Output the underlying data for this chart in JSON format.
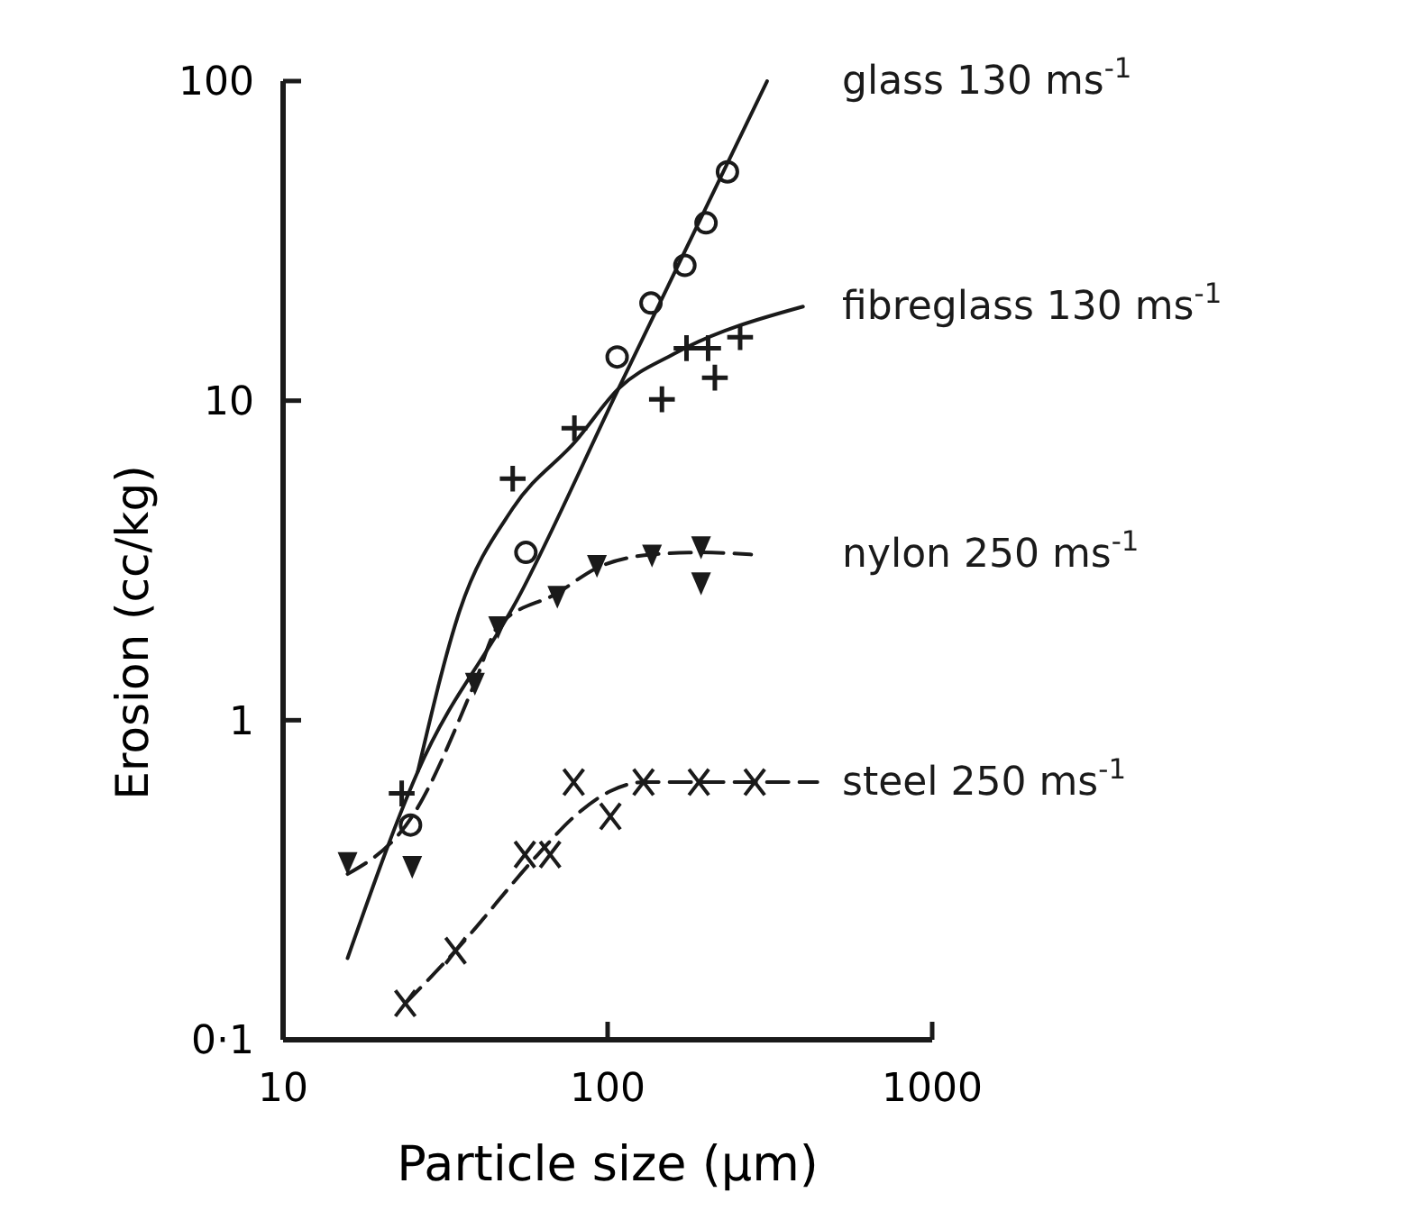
{
  "chart_data": {
    "type": "scatter",
    "xlabel": "Particle size (μm)",
    "ylabel": "Erosion (cc/kg)",
    "log": "xy",
    "xlim": [
      10,
      1000
    ],
    "ylim": [
      0.1,
      100
    ],
    "xticks": [
      10,
      100,
      1000
    ],
    "yticks": [
      {
        "value": 0.1,
        "label": "0·1"
      },
      1,
      10,
      100
    ],
    "grid": false,
    "legend": false,
    "series": [
      {
        "name": "glass 130 ms$^{-1}$",
        "color": "#1a1a1a",
        "marker": "circle",
        "x": [
          24.7,
          56,
          107,
          136,
          173,
          201,
          234
        ],
        "values": [
          0.47,
          3.35,
          13.7,
          20.2,
          26.5,
          36,
          52
        ]
      },
      {
        "type": "line",
        "color": "#1a1a1a",
        "line_style": "solid",
        "marker": "none",
        "x": [
          15.8,
          26,
          54,
          108,
          310
        ],
        "values": [
          0.18,
          0.69,
          2.5,
          10.9,
          100
        ]
      },
      {
        "name": "fibreglass 130 ms$^{-1}$",
        "color": "#1a1a1a",
        "marker": "cross",
        "x": [
          23.2,
          51,
          79,
          147,
          175,
          204,
          214,
          256
        ],
        "values": [
          0.59,
          5.7,
          8.2,
          10.1,
          14.6,
          14.6,
          11.8,
          15.8
        ]
      },
      {
        "type": "line",
        "color": "#1a1a1a",
        "line_style": "solid",
        "marker": "none",
        "x": [
          26,
          35,
          51,
          80,
          108,
          160,
          400
        ],
        "values": [
          0.69,
          2.2,
          4.6,
          7.5,
          10.9,
          14,
          19.7
        ]
      },
      {
        "name": "nylon 250 ms$^{-1}$",
        "color": "#1a1a1a",
        "marker": "triangle",
        "x": [
          15.8,
          25,
          39,
          46,
          70,
          92.7,
          137,
          194,
          194
        ],
        "values": [
          0.36,
          0.35,
          1.31,
          1.97,
          2.45,
          3.06,
          3.3,
          3.5,
          2.7
        ]
      },
      {
        "type": "line",
        "color": "#1a1a1a",
        "line_style": "dashed",
        "marker": "none",
        "x": [
          15.8,
          25,
          39,
          46,
          70,
          93,
          137,
          194,
          277
        ],
        "values": [
          0.33,
          0.5,
          1.31,
          1.97,
          2.5,
          3.0,
          3.3,
          3.35,
          3.3
        ]
      },
      {
        "name": "steel 250 ms$^{-1}$",
        "color": "#1a1a1a",
        "marker": "x",
        "x": [
          23.8,
          34,
          55.6,
          66.5,
          78.6,
          102,
          129,
          191,
          284
        ],
        "values": [
          0.13,
          0.19,
          0.38,
          0.38,
          0.64,
          0.5,
          0.64,
          0.64,
          0.64
        ]
      },
      {
        "type": "line",
        "color": "#1a1a1a",
        "line_style": "dashed",
        "marker": "none",
        "x": [
          23.8,
          34,
          61,
          79,
          102,
          129,
          191,
          284,
          443
        ],
        "values": [
          0.13,
          0.19,
          0.38,
          0.5,
          0.6,
          0.64,
          0.64,
          0.64,
          0.64
        ]
      }
    ]
  }
}
